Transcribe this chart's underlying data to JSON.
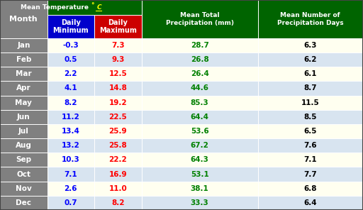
{
  "months": [
    "Jan",
    "Feb",
    "Mar",
    "Apr",
    "May",
    "Jun",
    "Jul",
    "Aug",
    "Sep",
    "Oct",
    "Nov",
    "Dec"
  ],
  "daily_min": [
    -0.3,
    0.5,
    2.2,
    4.1,
    8.2,
    11.2,
    13.4,
    13.2,
    10.3,
    7.1,
    2.6,
    0.7
  ],
  "daily_max": [
    7.3,
    9.3,
    12.5,
    14.8,
    19.2,
    22.5,
    25.9,
    25.8,
    22.2,
    16.9,
    11.0,
    8.2
  ],
  "precipitation_mm": [
    28.7,
    26.8,
    26.4,
    44.6,
    85.3,
    64.4,
    53.6,
    67.2,
    64.3,
    53.1,
    38.1,
    33.3
  ],
  "precip_days": [
    6.3,
    6.2,
    6.1,
    8.7,
    11.5,
    8.5,
    6.5,
    7.6,
    7.1,
    7.7,
    6.8,
    6.4
  ],
  "header_bg": "#006400",
  "header_text": "#FFFFFF",
  "subheader_min_bg": "#0000CC",
  "subheader_max_bg": "#CC0000",
  "subheader_text": "#FFFFFF",
  "row_bg_odd": "#FFFFF0",
  "row_bg_even": "#D8E4F0",
  "month_col_bg": "#808080",
  "month_col_text": "#FFFFFF",
  "min_text_color": "#0000FF",
  "max_text_color": "#FF0000",
  "precip_text_color": "#008000",
  "precip_days_text_color": "#000000",
  "title_precip": "Mean Total\nPrecipitation (mm)",
  "title_precip_days": "Mean Number of\nPrecipitation Days",
  "col_month": "Month"
}
